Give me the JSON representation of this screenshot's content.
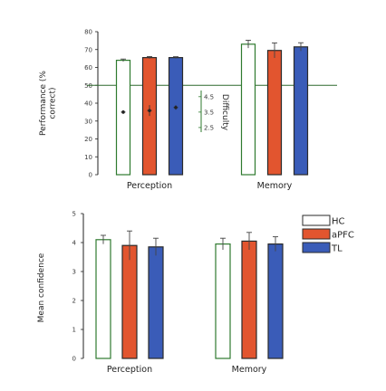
{
  "colors": {
    "HC": "#ffffff",
    "aPFC": "#e2552f",
    "TL": "#3a5cb8",
    "HC_edge": "#2f7a2f",
    "ref_line": "#2f6a2f",
    "axis_text": "#2e7a2e"
  },
  "legend": {
    "entries": [
      "HC",
      "aPFC",
      "TL"
    ]
  },
  "chart_data": [
    {
      "type": "bar",
      "panel": "top",
      "categories": [
        "Perception",
        "Memory"
      ],
      "ylabel": "Performance (% correct)",
      "ylim": [
        0,
        80
      ],
      "yticks": [
        0,
        10,
        20,
        30,
        40,
        50,
        60,
        70,
        80
      ],
      "reference_line": 50,
      "series": [
        {
          "name": "HC",
          "values": [
            64,
            73
          ],
          "errors": [
            0.7,
            2.2
          ]
        },
        {
          "name": "aPFC",
          "values": [
            65.5,
            69.5
          ],
          "errors": [
            0.6,
            4.2
          ]
        },
        {
          "name": "TL",
          "values": [
            65.5,
            71.5
          ],
          "errors": [
            0.5,
            2.3
          ]
        }
      ],
      "secondary_axis": {
        "label": "Difficulty",
        "ticks": [
          2.5,
          3.5,
          4.5
        ],
        "range": [
          2.2,
          4.9
        ],
        "points": [
          {
            "series": "HC",
            "category": "Perception",
            "value": 3.5,
            "error": 0.12
          },
          {
            "series": "aPFC",
            "category": "Perception",
            "value": 3.6,
            "error": 0.35
          },
          {
            "series": "TL",
            "category": "Perception",
            "value": 3.8,
            "error": 0.15
          }
        ]
      },
      "grid": false
    },
    {
      "type": "bar",
      "panel": "bottom",
      "categories": [
        "Perception",
        "Memory"
      ],
      "ylabel": "Mean confidence",
      "ylim": [
        0,
        5
      ],
      "yticks": [
        0,
        1,
        2,
        3,
        4,
        5
      ],
      "series": [
        {
          "name": "HC",
          "values": [
            4.1,
            3.95
          ],
          "errors": [
            0.15,
            0.2
          ]
        },
        {
          "name": "aPFC",
          "values": [
            3.9,
            4.05
          ],
          "errors": [
            0.5,
            0.3
          ]
        },
        {
          "name": "TL",
          "values": [
            3.85,
            3.95
          ],
          "errors": [
            0.3,
            0.25
          ]
        }
      ],
      "legend_position": "top-right",
      "grid": false
    }
  ]
}
